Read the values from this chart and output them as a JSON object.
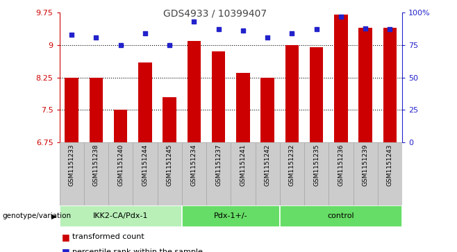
{
  "title": "GDS4933 / 10399407",
  "samples": [
    "GSM1151233",
    "GSM1151238",
    "GSM1151240",
    "GSM1151244",
    "GSM1151245",
    "GSM1151234",
    "GSM1151237",
    "GSM1151241",
    "GSM1151242",
    "GSM1151232",
    "GSM1151235",
    "GSM1151236",
    "GSM1151239",
    "GSM1151243"
  ],
  "groups": [
    {
      "label": "IKK2-CA/Pdx-1",
      "start": 0,
      "end": 5
    },
    {
      "label": "Pdx-1+/-",
      "start": 5,
      "end": 9
    },
    {
      "label": "control",
      "start": 9,
      "end": 14
    }
  ],
  "bar_values": [
    8.25,
    8.25,
    7.5,
    8.6,
    7.8,
    9.1,
    8.85,
    8.35,
    8.25,
    9.0,
    8.95,
    9.7,
    9.4,
    9.4
  ],
  "dot_values_pct": [
    83,
    81,
    75,
    84,
    75,
    93,
    87,
    86,
    81,
    84,
    87,
    97,
    88,
    87
  ],
  "bar_color": "#cc0000",
  "dot_color": "#2222cc",
  "group_colors": [
    "#b8f0b8",
    "#66dd66",
    "#66dd66"
  ],
  "ylim_left": [
    6.75,
    9.75
  ],
  "ylim_right": [
    0,
    100
  ],
  "yticks_left": [
    6.75,
    7.5,
    8.25,
    9.0,
    9.75
  ],
  "yticks_right": [
    0,
    25,
    50,
    75,
    100
  ],
  "ytick_labels_left": [
    "6.75",
    "7.5",
    "8.25",
    "9",
    "9.75"
  ],
  "ytick_labels_right": [
    "0",
    "25",
    "50",
    "75",
    "100%"
  ],
  "grid_values": [
    7.5,
    8.25,
    9.0
  ],
  "bar_bottom": 6.75,
  "legend_bar_label": "transformed count",
  "legend_dot_label": "percentile rank within the sample",
  "genotype_label": "genotype/variation",
  "title_color": "#444444",
  "left_axis_color": "#cc0000",
  "right_axis_color": "#2222cc",
  "sample_cell_color": "#cccccc",
  "sample_cell_border": "#aaaaaa"
}
